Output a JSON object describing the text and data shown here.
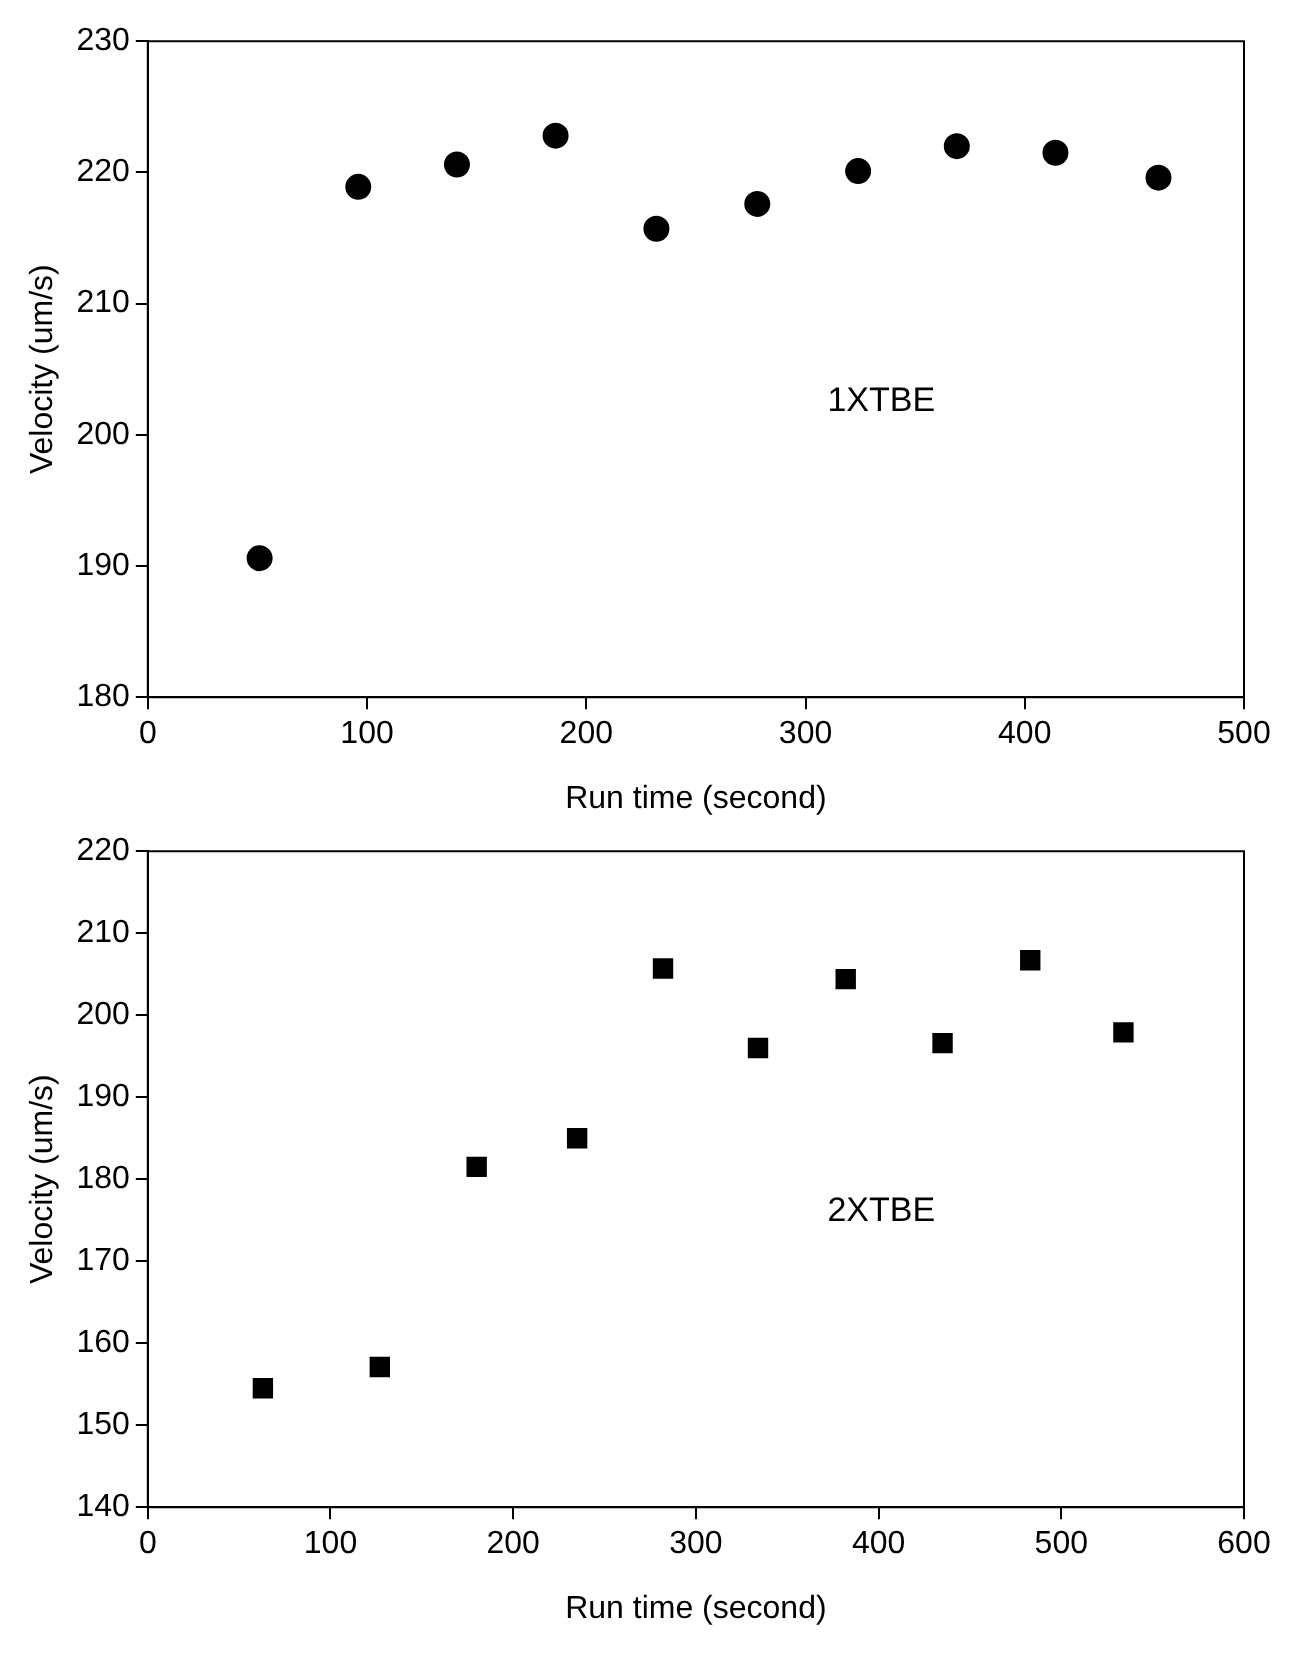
{
  "chart_data": [
    {
      "type": "scatter",
      "xlabel": "Run time (second)",
      "ylabel": "Velocity (um/s)",
      "annotations": [
        "1XTBE"
      ],
      "marker": "circle",
      "x": [
        51,
        96,
        141,
        186,
        232,
        278,
        324,
        369,
        414,
        461
      ],
      "series": [
        {
          "color": "#000000",
          "values": [
            190.6,
            218.9,
            220.6,
            222.8,
            215.7,
            217.6,
            220.1,
            222.0,
            221.5,
            219.6
          ]
        }
      ],
      "xlim": [
        0,
        500
      ],
      "xticks": [
        0,
        100,
        200,
        300,
        400,
        500
      ],
      "ylim": [
        180,
        230
      ],
      "yticks": [
        180,
        190,
        200,
        210,
        220,
        230
      ],
      "grid": false,
      "legend": false
    },
    {
      "type": "scatter",
      "xlabel": "Run time (second)",
      "ylabel": "Velocity (um/s)",
      "annotations": [
        "2XTBE"
      ],
      "marker": "square",
      "x": [
        63,
        127,
        180,
        235,
        282,
        334,
        382,
        435,
        483,
        534
      ],
      "series": [
        {
          "color": "#000000",
          "values": [
            154.5,
            157.1,
            181.5,
            185,
            205.7,
            196,
            204.4,
            196.6,
            206.7,
            197.9
          ]
        }
      ],
      "xlim": [
        0,
        600
      ],
      "xticks": [
        0,
        100,
        200,
        300,
        400,
        500,
        600
      ],
      "ylim": [
        140,
        220
      ],
      "yticks": [
        140,
        150,
        160,
        170,
        180,
        190,
        200,
        210,
        220
      ],
      "grid": false,
      "legend": false
    }
  ]
}
